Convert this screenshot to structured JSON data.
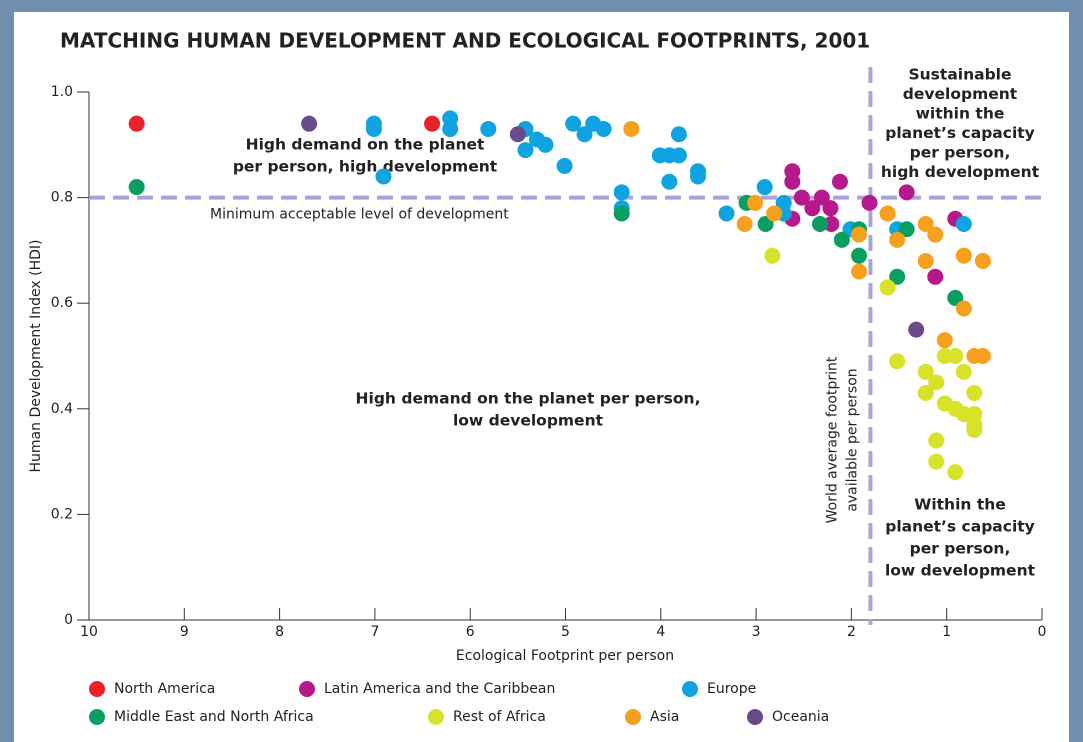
{
  "chart_data": {
    "type": "scatter",
    "title": "MATCHING HUMAN DEVELOPMENT AND ECOLOGICAL FOOTPRINTS, 2001",
    "x_label": "Ecological Footprint per person",
    "y_label": "Human Development Index (HDI)",
    "xlim": [
      10,
      0
    ],
    "xticks": [
      10,
      9,
      8,
      7,
      6,
      5,
      4,
      3,
      2,
      1,
      0
    ],
    "ylim": [
      0,
      1
    ],
    "yticks": [
      0,
      0.2,
      0.4,
      0.6,
      0.8,
      {
        "value": 1,
        "label": "1.0"
      }
    ],
    "reference_lines": [
      {
        "axis": "y",
        "value": 0.8,
        "label": [
          "Minimum acceptable level of development"
        ]
      },
      {
        "axis": "x",
        "value": 1.8,
        "label": [
          "World average footprint",
          "available per person"
        ]
      }
    ],
    "annotations": [
      [
        "High demand on the planet",
        "per person, high development"
      ],
      [
        "High demand on the planet per person,",
        "low development"
      ],
      [
        "Sustainable",
        "development",
        "within the",
        "planet’s capacity",
        "per person,",
        "high development"
      ],
      [
        "Within the",
        "planet’s capacity",
        "per person,",
        "low development"
      ]
    ],
    "series": [
      {
        "name": "North America",
        "color": "#e8212b",
        "x": [
          9.5,
          6.4
        ],
        "values": [
          0.94,
          0.94
        ]
      },
      {
        "name": "Latin America and the Caribbean",
        "color": "#b5198c",
        "x": [
          2.62,
          2.62,
          2.52,
          2.41,
          2.31,
          2.22,
          2.21,
          2.12,
          2.62,
          1.81,
          1.42,
          0.91,
          1.12
        ],
        "values": [
          0.85,
          0.83,
          0.8,
          0.78,
          0.8,
          0.78,
          0.75,
          0.83,
          0.76,
          0.79,
          0.81,
          0.76,
          0.65
        ]
      },
      {
        "name": "Europe",
        "color": "#0fa3e2",
        "x": [
          7.01,
          7.01,
          6.91,
          6.21,
          6.21,
          5.81,
          5.42,
          5.42,
          5.3,
          5.21,
          5.01,
          4.92,
          4.8,
          4.71,
          4.6,
          4.41,
          4.41,
          4.01,
          3.91,
          3.91,
          3.81,
          3.81,
          3.61,
          3.61,
          3.31,
          2.91,
          2.71,
          2.71,
          2.01,
          1.52,
          0.82
        ],
        "values": [
          0.94,
          0.93,
          0.84,
          0.95,
          0.93,
          0.93,
          0.93,
          0.89,
          0.91,
          0.9,
          0.86,
          0.94,
          0.92,
          0.94,
          0.93,
          0.81,
          0.78,
          0.88,
          0.88,
          0.83,
          0.92,
          0.88,
          0.85,
          0.84,
          0.77,
          0.82,
          0.79,
          0.77,
          0.74,
          0.74,
          0.75
        ]
      },
      {
        "name": "Middle East and North Africa",
        "color": "#0a9e60",
        "x": [
          9.5,
          4.41,
          3.1,
          2.9,
          2.33,
          2.1,
          1.92,
          1.92,
          1.42,
          1.52,
          0.91
        ],
        "values": [
          0.82,
          0.77,
          0.79,
          0.75,
          0.75,
          0.72,
          0.74,
          0.69,
          0.74,
          0.65,
          0.61
        ]
      },
      {
        "name": "Rest of Africa",
        "color": "#d8e228",
        "x": [
          2.83,
          1.62,
          1.52,
          1.02,
          0.91,
          1.22,
          1.11,
          0.82,
          1.22,
          1.02,
          0.91,
          0.82,
          0.71,
          0.71,
          0.71,
          0.71,
          1.11,
          1.11,
          0.91
        ],
        "values": [
          0.69,
          0.63,
          0.49,
          0.5,
          0.5,
          0.47,
          0.45,
          0.47,
          0.43,
          0.41,
          0.4,
          0.39,
          0.43,
          0.39,
          0.37,
          0.36,
          0.34,
          0.3,
          0.28
        ]
      },
      {
        "name": "Asia",
        "color": "#f6a01e",
        "x": [
          4.31,
          3.12,
          3.01,
          2.81,
          1.92,
          1.92,
          1.62,
          1.52,
          1.22,
          1.12,
          1.22,
          0.82,
          0.62,
          0.82,
          1.02,
          0.71,
          0.62
        ],
        "values": [
          0.93,
          0.75,
          0.79,
          0.77,
          0.73,
          0.66,
          0.77,
          0.72,
          0.75,
          0.73,
          0.68,
          0.69,
          0.68,
          0.59,
          0.53,
          0.5,
          0.5
        ]
      },
      {
        "name": "Oceania",
        "color": "#6b4a8b",
        "x": [
          7.69,
          5.5,
          1.32
        ],
        "values": [
          0.94,
          0.92,
          0.55
        ]
      }
    ]
  }
}
